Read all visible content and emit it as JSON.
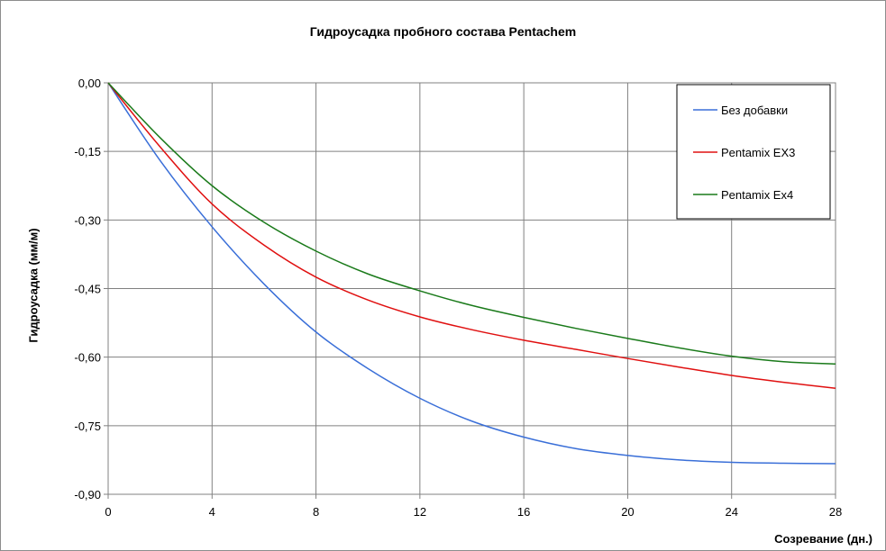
{
  "chart_data": {
    "type": "line",
    "title": "Гидроусадка пробного состава Pentachem",
    "xlabel": "Созревание (дн.)",
    "ylabel": "Гидроусадка (мм/м)",
    "xlim": [
      0,
      28
    ],
    "ylim": [
      -0.9,
      0
    ],
    "x_ticks": [
      "0",
      "4",
      "8",
      "12",
      "16",
      "20",
      "24",
      "28"
    ],
    "y_ticks": [
      "0,00",
      "-0,15",
      "-0,30",
      "-0,45",
      "-0,60",
      "-0,75",
      "-0,90"
    ],
    "grid": true,
    "legend_position": "top-right",
    "series": [
      {
        "name": "Без добавки",
        "color": "#3a6fd8",
        "x": [
          0,
          2,
          4,
          6,
          8,
          10,
          12,
          14,
          16,
          18,
          20,
          22,
          24,
          26,
          28
        ],
        "y": [
          0,
          -0.17,
          -0.315,
          -0.44,
          -0.545,
          -0.625,
          -0.69,
          -0.74,
          -0.775,
          -0.8,
          -0.815,
          -0.825,
          -0.83,
          -0.832,
          -0.833
        ]
      },
      {
        "name": "Pentamix EX3",
        "color": "#e01010",
        "x": [
          0,
          2,
          4,
          6,
          8,
          10,
          12,
          14,
          16,
          18,
          20,
          22,
          24,
          26,
          28
        ],
        "y": [
          0,
          -0.14,
          -0.265,
          -0.355,
          -0.425,
          -0.475,
          -0.512,
          -0.54,
          -0.563,
          -0.583,
          -0.603,
          -0.622,
          -0.64,
          -0.655,
          -0.668
        ]
      },
      {
        "name": "Pentamix Ex4",
        "color": "#1a7a1a",
        "x": [
          0,
          2,
          4,
          6,
          8,
          10,
          12,
          14,
          16,
          18,
          20,
          22,
          24,
          26,
          28
        ],
        "y": [
          0,
          -0.12,
          -0.225,
          -0.305,
          -0.368,
          -0.418,
          -0.455,
          -0.487,
          -0.513,
          -0.537,
          -0.559,
          -0.58,
          -0.598,
          -0.61,
          -0.615
        ]
      }
    ]
  }
}
